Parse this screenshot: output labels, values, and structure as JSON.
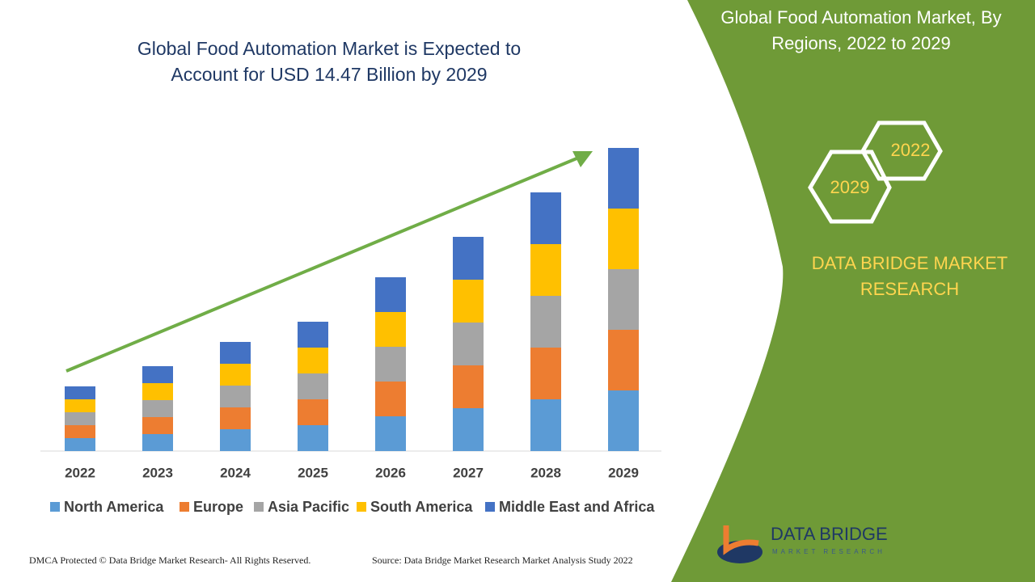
{
  "chart_data": {
    "type": "bar",
    "stacked": true,
    "title": "Global Food Automation Market is Expected to Account for USD 14.47 Billion by 2029",
    "categories": [
      "2022",
      "2023",
      "2024",
      "2025",
      "2026",
      "2027",
      "2028",
      "2029"
    ],
    "series": [
      {
        "name": "North America",
        "color": "#5b9bd5",
        "values": [
          16,
          21,
          27,
          32,
          43,
          53,
          64,
          75
        ]
      },
      {
        "name": "Europe",
        "color": "#ed7d31",
        "values": [
          16,
          21,
          27,
          32,
          43,
          53,
          64,
          75
        ]
      },
      {
        "name": "Asia Pacific",
        "color": "#a5a5a5",
        "values": [
          16,
          21,
          27,
          32,
          43,
          53,
          64,
          75
        ]
      },
      {
        "name": "South America",
        "color": "#ffc000",
        "values": [
          16,
          21,
          27,
          32,
          43,
          53,
          64,
          75
        ]
      },
      {
        "name": "Middle East and Africa",
        "color": "#4472c4",
        "values": [
          16,
          21,
          27,
          32,
          43,
          53,
          64,
          75
        ]
      }
    ],
    "ylim": [
      0,
      400
    ],
    "grid": false,
    "legend": "bottom"
  },
  "panel": {
    "title": "Global Food Automation Market, By Regions, 2022 to 2029",
    "hex_a": "2022",
    "hex_b": "2029",
    "brand": "DATA BRIDGE MARKET RESEARCH",
    "logo": "DATA BRIDGE",
    "logo_sub": "MARKET RESEARCH"
  },
  "footer": {
    "dmca": "DMCA Protected © Data Bridge Market Research- All Rights Reserved.",
    "source": "Source: Data Bridge Market Research Market Analysis Study 2022"
  }
}
